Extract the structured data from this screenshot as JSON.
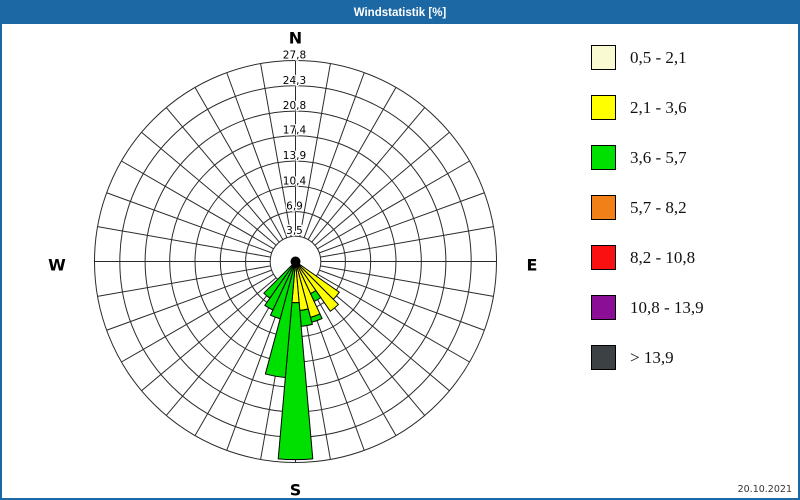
{
  "window": {
    "title": "Windstatistik [%]",
    "date_label": "20.10.2021"
  },
  "compass": {
    "north": "N",
    "east": "E",
    "south": "S",
    "west": "W"
  },
  "legend": {
    "position": "right",
    "items": [
      {
        "range": "0,5 - 2,1",
        "color": "#FAFAD2"
      },
      {
        "range": "2,1 - 3,6",
        "color": "#FFFF00"
      },
      {
        "range": "3,6 - 5,7",
        "color": "#00E000"
      },
      {
        "range": "5,7 - 8,2",
        "color": "#F28018"
      },
      {
        "range": "8,2 - 10,8",
        "color": "#FA1010"
      },
      {
        "range": "10,8 - 13,9",
        "color": "#8A0F96"
      },
      {
        "range": "> 13,9",
        "color": "#3C4144"
      }
    ]
  },
  "chart_data": {
    "type": "wind-rose",
    "title": "Windstatistik [%]",
    "unit": "percent frequency",
    "grid": {
      "sector_step_deg": 10,
      "sectors": 36,
      "rings": 8,
      "grid_on": true
    },
    "axis": {
      "min": 0,
      "max": 27.8,
      "ticks": [
        {
          "value": 3.5,
          "label": "3,5"
        },
        {
          "value": 6.9,
          "label": "6,9"
        },
        {
          "value": 10.4,
          "label": "10,4"
        },
        {
          "value": 13.9,
          "label": "13,9"
        },
        {
          "value": 17.4,
          "label": "17,4"
        },
        {
          "value": 20.8,
          "label": "20,8"
        },
        {
          "value": 24.3,
          "label": "24,3"
        },
        {
          "value": 27.8,
          "label": "27,8"
        }
      ]
    },
    "petals": [
      {
        "angle_deg": 130,
        "segments": [
          {
            "speed_class": "2,1 - 3,6",
            "value": 7.4
          }
        ]
      },
      {
        "angle_deg": 140,
        "segments": [
          {
            "speed_class": "2,1 - 3,6",
            "value": 8.4
          }
        ]
      },
      {
        "angle_deg": 150,
        "segments": [
          {
            "speed_class": "2,1 - 3,6",
            "value": 4.9
          },
          {
            "speed_class": "3,6 - 5,7",
            "value": 1.2
          }
        ]
      },
      {
        "angle_deg": 160,
        "segments": [
          {
            "speed_class": "2,1 - 3,6",
            "value": 8.0
          },
          {
            "speed_class": "3,6 - 5,7",
            "value": 0.7
          }
        ]
      },
      {
        "angle_deg": 170,
        "segments": [
          {
            "speed_class": "2,1 - 3,6",
            "value": 6.8
          },
          {
            "speed_class": "3,6 - 5,7",
            "value": 2.2
          }
        ]
      },
      {
        "angle_deg": 180,
        "segments": [
          {
            "speed_class": "2,1 - 3,6",
            "value": 5.7
          },
          {
            "speed_class": "3,6 - 5,7",
            "value": 21.7
          }
        ]
      },
      {
        "angle_deg": 190,
        "segments": [
          {
            "speed_class": "3,6 - 5,7",
            "value": 16.1
          }
        ]
      },
      {
        "angle_deg": 200,
        "segments": [
          {
            "speed_class": "3,6 - 5,7",
            "value": 8.2
          }
        ]
      },
      {
        "angle_deg": 210,
        "segments": [
          {
            "speed_class": "3,6 - 5,7",
            "value": 7.4
          }
        ]
      },
      {
        "angle_deg": 220,
        "segments": [
          {
            "speed_class": "3,6 - 5,7",
            "value": 6.2
          }
        ]
      }
    ]
  }
}
